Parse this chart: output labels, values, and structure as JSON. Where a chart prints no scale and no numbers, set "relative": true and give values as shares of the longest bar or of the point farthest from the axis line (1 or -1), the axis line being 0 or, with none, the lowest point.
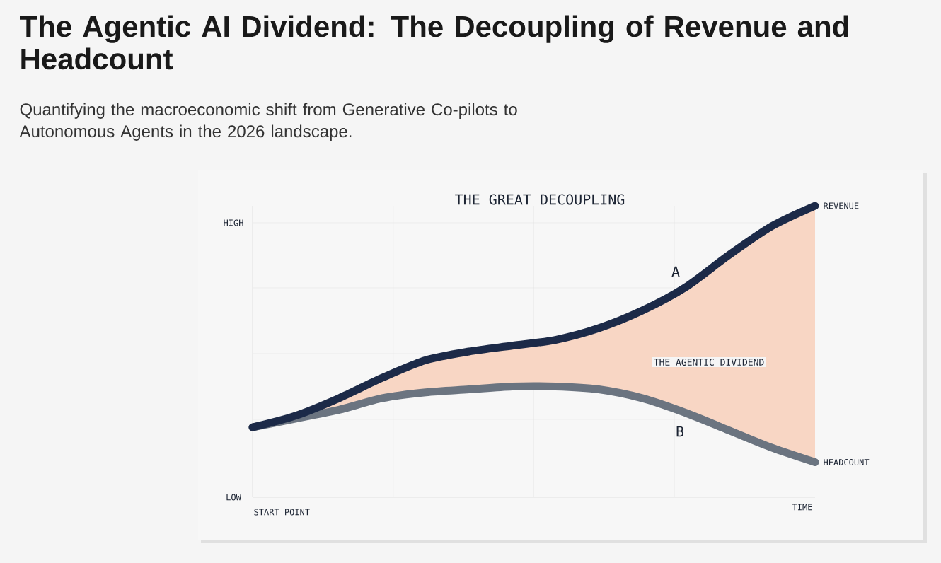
{
  "chart_data": {
    "type": "line",
    "relative": true,
    "title": "The Agentic AI Dividend: The Decoupling of Revenue and Headcount",
    "subtitle": "Quantifying the macroeconomic shift from Generative Co-pilots to Autonomous Agents in the 2026 landscape.",
    "xlabel": "TIME",
    "categories": [
      null,
      null,
      null,
      null,
      null,
      null,
      null,
      null,
      null,
      null,
      null,
      null,
      null,
      null
    ],
    "series": [
      {
        "name": "REVENUE",
        "color": "#1c2a48",
        "values": [
          0.24,
          0.28,
          0.34,
          0.41,
          0.47,
          0.5,
          0.52,
          0.54,
          0.58,
          0.64,
          0.72,
          0.83,
          0.93,
          1
        ],
        "upper": [
          0.24,
          0.28,
          0.34,
          0.41,
          0.47,
          0.5,
          0.52,
          0.54,
          0.58,
          0.64,
          0.72,
          0.83,
          0.93,
          1
        ],
        "lower": [
          0.24,
          0.27,
          0.3,
          0.34,
          0.36,
          0.37,
          0.38,
          0.38,
          0.37,
          0.34,
          0.29,
          0.23,
          0.17,
          0.12
        ]
      },
      {
        "name": "HEADCOUNT",
        "color": "#6b7480",
        "values": [
          0.24,
          0.27,
          0.3,
          0.34,
          0.36,
          0.37,
          0.38,
          0.38,
          0.37,
          0.34,
          0.29,
          0.23,
          0.17,
          0.12
        ]
      }
    ],
    "annotations": [
      "THE GREAT DECOUPLING",
      "HIGH",
      "LOW",
      "A",
      "THE AGENTIC DIVIDEND",
      "B",
      "START POINT"
    ],
    "grid": true,
    "marker": "none",
    "line_style": "solid"
  }
}
